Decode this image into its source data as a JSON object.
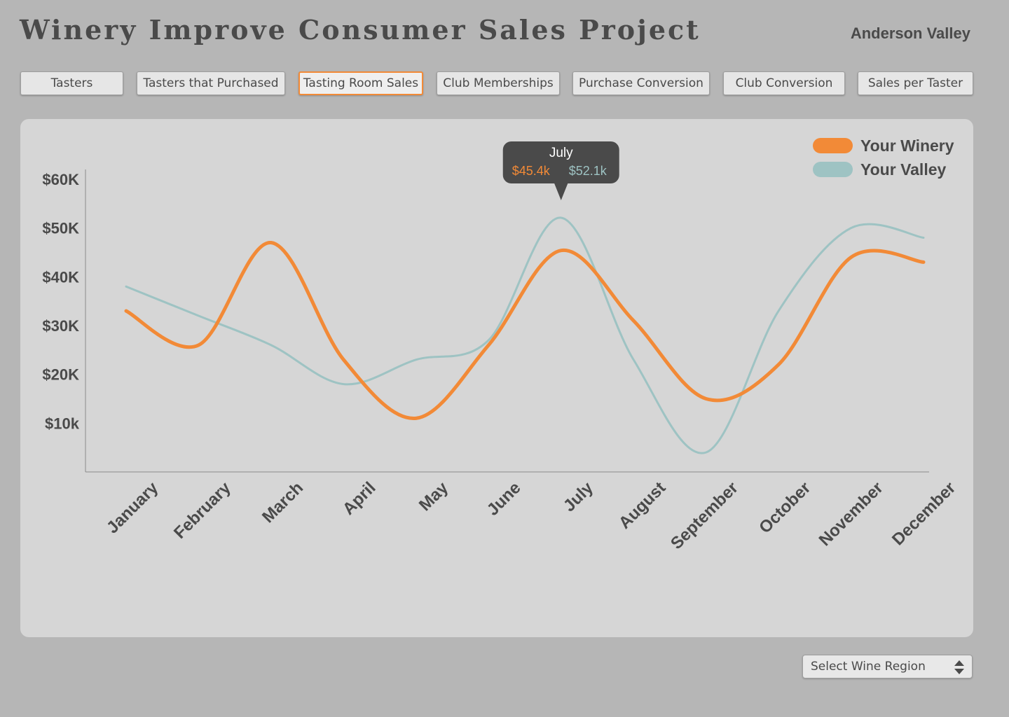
{
  "header": {
    "title": "Winery Improve Consumer Sales Project",
    "region": "Anderson Valley"
  },
  "tabs": [
    {
      "label": "Tasters",
      "active": false
    },
    {
      "label": "Tasters that Purchased",
      "active": false
    },
    {
      "label": "Tasting Room Sales",
      "active": true
    },
    {
      "label": "Club Memberships",
      "active": false
    },
    {
      "label": "Purchase Conversion",
      "active": false
    },
    {
      "label": "Club Conversion",
      "active": false
    },
    {
      "label": "Sales per Taster",
      "active": false
    }
  ],
  "region_select": {
    "placeholder": "Select Wine Region",
    "icon": "up-down-arrows-icon"
  },
  "colors": {
    "winery": "#f28a37",
    "valley": "#9ec3c3",
    "axis_text": "#4a4a4a",
    "tooltip_bg": "#4a4a4a"
  },
  "chart_data": {
    "type": "line",
    "categories": [
      "January",
      "February",
      "March",
      "April",
      "May",
      "June",
      "July",
      "August",
      "September",
      "October",
      "November",
      "December"
    ],
    "y_tick_labels": [
      "$60K",
      "$50K",
      "$40K",
      "$30K",
      "$20K",
      "$10k"
    ],
    "y_tick_values": [
      60,
      50,
      40,
      30,
      20,
      10
    ],
    "ylim": [
      0,
      62
    ],
    "series": [
      {
        "name": "Your Winery",
        "color": "#f28a37",
        "values": [
          33,
          26,
          47,
          23,
          11,
          26,
          45.4,
          31,
          15,
          22,
          44,
          43
        ]
      },
      {
        "name": "Your Valley",
        "color": "#9ec3c3",
        "values": [
          38,
          32,
          26,
          18,
          23,
          27,
          52.1,
          23,
          4,
          33,
          50,
          48
        ]
      }
    ],
    "tooltip": {
      "month": "July",
      "index": 6,
      "winery_value": "$45.4k",
      "valley_value": "$52.1k"
    },
    "legend": [
      "Your Winery",
      "Your Valley"
    ],
    "legend_position": "top-right"
  }
}
